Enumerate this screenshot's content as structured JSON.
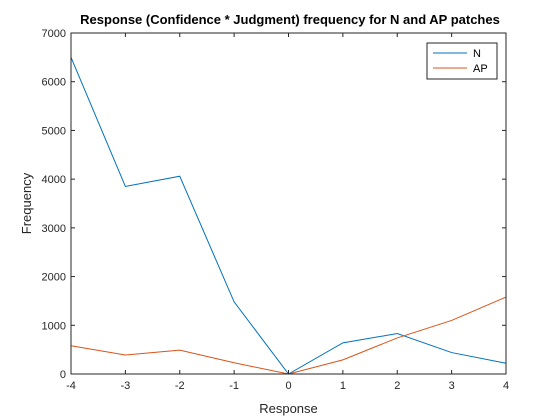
{
  "chart_data": {
    "type": "line",
    "title": "Response (Confidence * Judgment) frequency for N and AP patches",
    "xlabel": "Response",
    "ylabel": "Frequency",
    "x": [
      -4,
      -3,
      -2,
      -1,
      0,
      1,
      2,
      3,
      4
    ],
    "xlim": [
      -4,
      4
    ],
    "ylim": [
      0,
      7000
    ],
    "xticks": [
      -4,
      -3,
      -2,
      -1,
      0,
      1,
      2,
      3,
      4
    ],
    "yticks": [
      0,
      1000,
      2000,
      3000,
      4000,
      5000,
      6000,
      7000
    ],
    "grid": false,
    "legend_position": "top-right",
    "series": [
      {
        "name": "N",
        "color": "#0072BD",
        "values": [
          6500,
          3850,
          4060,
          1480,
          0,
          640,
          830,
          440,
          220
        ]
      },
      {
        "name": "AP",
        "color": "#D95319",
        "values": [
          580,
          390,
          490,
          230,
          0,
          290,
          740,
          1100,
          1580
        ]
      }
    ]
  }
}
